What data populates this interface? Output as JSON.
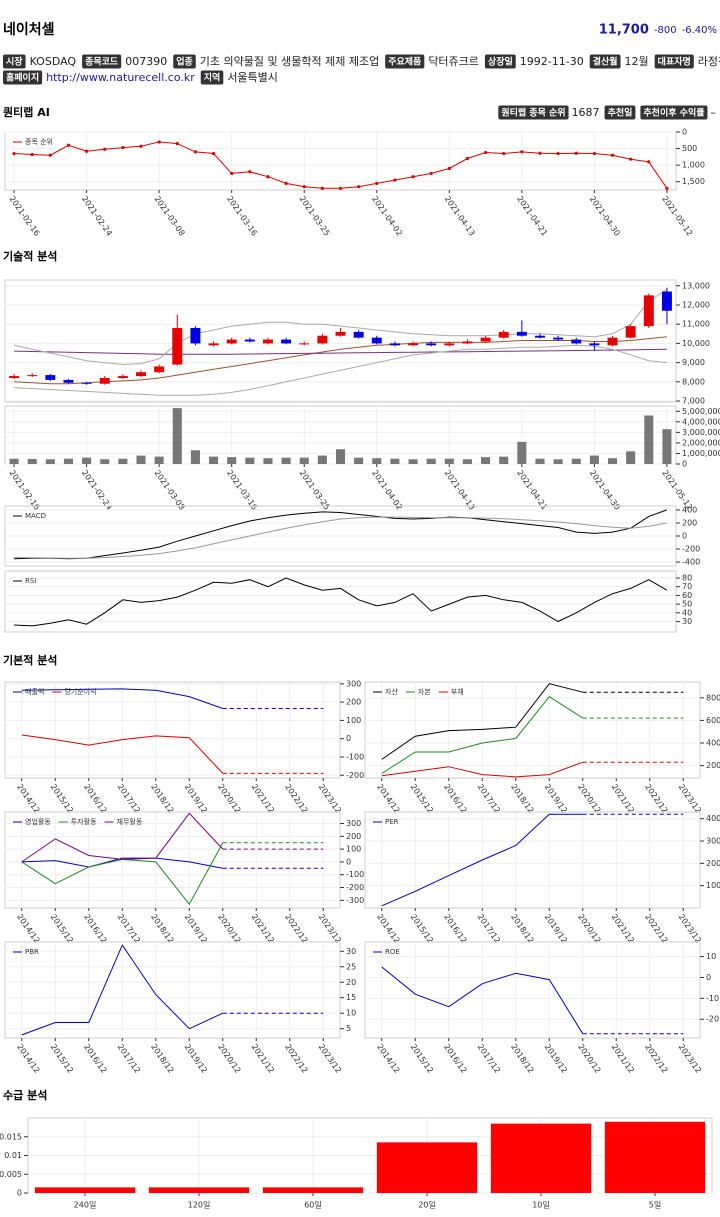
{
  "header": {
    "name": "네이처셀",
    "price": "11,700",
    "change": "-800",
    "change_pct": "-6.40%"
  },
  "info_rows": [
    [
      {
        "label": "시장",
        "value": "KOSDAQ"
      },
      {
        "label": "종목코드",
        "value": "007390"
      },
      {
        "label": "업종",
        "value": "기초 의약물질 및 생물학적 제제 제조업"
      },
      {
        "label": "주요제품",
        "value": "닥터쥬크르"
      },
      {
        "label": "상장일",
        "value": "1992-11-30"
      },
      {
        "label": "결산월",
        "value": "12월"
      },
      {
        "label": "대표자명",
        "value": "라정찬"
      }
    ],
    [
      {
        "label": "홈페이지",
        "value": "http://www.naturecell.co.kr"
      },
      {
        "label": "지역",
        "value": "서울특별시"
      }
    ]
  ],
  "sections": [
    "퀀티랩 AI",
    "기술적 분석",
    "기본적 분석",
    "수급 분석"
  ],
  "quant": {
    "rank_label": "퀀티랩 종목 순위",
    "rank": 1687,
    "date_label": "추천일",
    "return_label": "추천이후 수익률",
    "return": "–"
  },
  "chart_data": [
    {
      "type": "line",
      "markers": true,
      "grid": true,
      "categories": [
        "2021-02-16",
        null,
        null,
        null,
        "2021-02-24",
        null,
        null,
        null,
        "2021-03-08",
        null,
        null,
        null,
        "2021-03-16",
        null,
        null,
        null,
        "2021-03-25",
        null,
        null,
        null,
        "2021-04-02",
        null,
        null,
        null,
        "2021-04-13",
        null,
        null,
        null,
        "2021-04-21",
        null,
        null,
        null,
        "2021-04-30",
        null,
        null,
        null,
        "2021-05-12"
      ],
      "series": [
        {
          "name": "종목 순위",
          "color": "#dd0000",
          "values": [
            650,
            680,
            700,
            400,
            580,
            520,
            470,
            430,
            300,
            350,
            600,
            650,
            1250,
            1200,
            1350,
            1550,
            1650,
            1700,
            1700,
            1650,
            1550,
            1450,
            1350,
            1250,
            1100,
            800,
            620,
            650,
            600,
            640,
            650,
            640,
            650,
            700,
            820,
            900,
            1700
          ]
        }
      ],
      "ylim": [
        1750,
        0
      ],
      "yticks": [
        0,
        500,
        {
          "value": 1000,
          "label": "1,000"
        },
        {
          "value": 1500,
          "label": "1,500"
        }
      ]
    },
    {
      "type": "candlestick",
      "grid": true,
      "up_color": "#e60000",
      "down_color": "#0000e6",
      "open": [
        8200,
        8300,
        8350,
        8100,
        7950,
        7900,
        8200,
        8300,
        8500,
        8900,
        10800,
        9900,
        10000,
        10200,
        10000,
        10200,
        10000,
        10000,
        10400,
        10600,
        10300,
        10000,
        9900,
        10000,
        9900,
        10000,
        10100,
        10300,
        10600,
        10400,
        10300,
        10200,
        10000,
        9900,
        10300,
        10900,
        12700
      ],
      "high": [
        8400,
        8450,
        8400,
        8150,
        8000,
        8300,
        8400,
        8600,
        8900,
        11500,
        10900,
        10100,
        10300,
        10300,
        10300,
        10300,
        10100,
        10500,
        10800,
        10700,
        10400,
        10100,
        10100,
        10100,
        10100,
        10200,
        10400,
        10700,
        11200,
        10500,
        10400,
        10300,
        10100,
        10400,
        11000,
        12600,
        12900
      ],
      "low": [
        8150,
        8250,
        8050,
        7900,
        7850,
        7850,
        8150,
        8250,
        8450,
        8850,
        9900,
        9850,
        9950,
        10050,
        9950,
        9950,
        9900,
        9950,
        10350,
        10250,
        9950,
        9850,
        9850,
        9850,
        9850,
        9950,
        10050,
        10250,
        10350,
        10250,
        10150,
        9950,
        9600,
        9850,
        10250,
        10800,
        11000
      ],
      "close": [
        8300,
        8350,
        8100,
        7950,
        7900,
        8200,
        8300,
        8500,
        8800,
        10800,
        10000,
        10000,
        10200,
        10100,
        10200,
        10000,
        10000,
        10400,
        10600,
        10300,
        10000,
        9900,
        10000,
        9900,
        10000,
        10100,
        10300,
        10600,
        10400,
        10300,
        10200,
        10000,
        9900,
        10300,
        10900,
        12500,
        11700
      ],
      "lines": [
        {
          "color": "#a0522d",
          "values": [
            8000,
            7950,
            7900,
            7900,
            7950,
            8000,
            8050,
            8100,
            8200,
            8350,
            8500,
            8650,
            8800,
            8950,
            9100,
            9250,
            9400,
            9550,
            9700,
            9800,
            9900,
            9950,
            10000,
            10050,
            10050,
            10050,
            10050,
            10100,
            10150,
            10150,
            10150,
            10150,
            10100,
            10100,
            10150,
            10250,
            10350
          ]
        },
        {
          "color": "#7b2d8b",
          "values": [
            9600,
            9580,
            9560,
            9540,
            9520,
            9500,
            9480,
            9460,
            9440,
            9440,
            9440,
            9440,
            9440,
            9450,
            9460,
            9470,
            9480,
            9490,
            9500,
            9510,
            9520,
            9530,
            9540,
            9550,
            9560,
            9570,
            9580,
            9590,
            9600,
            9610,
            9620,
            9630,
            9640,
            9650,
            9660,
            9680,
            9700
          ]
        },
        {
          "color": "#aaaaaa",
          "values": [
            9900,
            9700,
            9500,
            9300,
            9100,
            9000,
            8900,
            8950,
            9200,
            10000,
            10500,
            10700,
            10900,
            11000,
            11100,
            11100,
            11000,
            11000,
            10900,
            10800,
            10700,
            10600,
            10500,
            10450,
            10400,
            10400,
            10400,
            10450,
            10500,
            10500,
            10450,
            10400,
            10350,
            10500,
            11000,
            12200,
            12800
          ]
        },
        {
          "color": "#aaaaaa",
          "values": [
            7700,
            7650,
            7600,
            7550,
            7500,
            7450,
            7400,
            7350,
            7300,
            7300,
            7300,
            7350,
            7450,
            7600,
            7800,
            8000,
            8200,
            8400,
            8600,
            8800,
            9000,
            9200,
            9400,
            9500,
            9600,
            9700,
            9700,
            9750,
            9800,
            9800,
            9850,
            9900,
            9850,
            9700,
            9400,
            9100,
            9000
          ]
        }
      ],
      "ylim": [
        6950,
        13300
      ],
      "yticks": [
        {
          "value": 7000,
          "label": "7,000"
        },
        {
          "value": 8000,
          "label": "8,000"
        },
        {
          "value": 9000,
          "label": "9,000"
        },
        {
          "value": 10000,
          "label": "10,000"
        },
        {
          "value": 11000,
          "label": "11,000"
        },
        {
          "value": 12000,
          "label": "12,000"
        },
        {
          "value": 13000,
          "label": "13,000"
        }
      ]
    },
    {
      "type": "bar",
      "grid": true,
      "color": "#777777",
      "categories": [
        "2021-02-16",
        null,
        null,
        null,
        "2021-02-24",
        null,
        null,
        null,
        "2021-03-08",
        null,
        null,
        null,
        "2021-03-16",
        null,
        null,
        null,
        "2021-03-25",
        null,
        null,
        null,
        "2021-04-02",
        null,
        null,
        null,
        "2021-04-13",
        null,
        null,
        null,
        "2021-04-21",
        null,
        null,
        null,
        "2021-04-30",
        null,
        null,
        null,
        "2021-05-12"
      ],
      "values": [
        500000,
        480000,
        450000,
        500000,
        600000,
        450000,
        500000,
        800000,
        700000,
        5300000,
        1300000,
        700000,
        650000,
        600000,
        550000,
        600000,
        600000,
        800000,
        1400000,
        600000,
        550000,
        500000,
        450000,
        500000,
        500000,
        450000,
        650000,
        700000,
        2100000,
        500000,
        450000,
        500000,
        800000,
        550000,
        1200000,
        4600000,
        3300000
      ],
      "ylim": [
        0,
        5500000
      ],
      "yticks": [
        0,
        {
          "value": 1000000,
          "label": "1,000,000"
        },
        {
          "value": 2000000,
          "label": "2,000,000"
        },
        {
          "value": 3000000,
          "label": "3,000,000"
        },
        {
          "value": 4000000,
          "label": "4,000,000"
        },
        {
          "value": 5000000,
          "label": "5,000,000"
        }
      ]
    },
    {
      "type": "line",
      "grid": true,
      "series": [
        {
          "name": "MACD",
          "color": "#000000",
          "values": [
            -350,
            -340,
            -340,
            -350,
            -340,
            -300,
            -260,
            -220,
            -170,
            -80,
            0,
            80,
            160,
            230,
            280,
            320,
            350,
            370,
            360,
            330,
            300,
            270,
            260,
            270,
            290,
            280,
            250,
            220,
            190,
            160,
            130,
            60,
            40,
            60,
            120,
            300,
            400
          ]
        },
        {
          "color": "#999999",
          "values": [
            -330,
            -335,
            -338,
            -340,
            -340,
            -330,
            -315,
            -295,
            -270,
            -230,
            -180,
            -120,
            -60,
            0,
            60,
            120,
            170,
            220,
            260,
            280,
            290,
            290,
            285,
            280,
            280,
            280,
            275,
            265,
            250,
            235,
            215,
            190,
            160,
            135,
            120,
            150,
            200
          ]
        }
      ],
      "ylim": [
        -460,
        460
      ],
      "yticks": [
        -400,
        -200,
        0,
        200,
        400
      ]
    },
    {
      "type": "line",
      "grid": true,
      "series": [
        {
          "name": "RSI",
          "color": "#000000",
          "values": [
            26,
            25,
            28,
            32,
            27,
            40,
            55,
            52,
            54,
            58,
            66,
            75,
            74,
            78,
            70,
            80,
            72,
            66,
            68,
            55,
            48,
            52,
            62,
            42,
            50,
            58,
            60,
            55,
            52,
            42,
            30,
            40,
            52,
            62,
            68,
            78,
            66
          ]
        }
      ],
      "ylim": [
        18,
        88
      ],
      "yticks": [
        30,
        40,
        50,
        60,
        70,
        80
      ]
    },
    {
      "type": "line",
      "grid": true,
      "dashed_from": "2020/12",
      "categories": [
        "2014/12",
        "2015/12",
        "2016/12",
        "2017/12",
        "2018/12",
        "2019/12",
        "2020/12",
        "2021/12",
        "2022/12",
        "2023/12"
      ],
      "series": [
        {
          "name": "매출액",
          "color": "#0000cc",
          "values": [
            265,
            268,
            270,
            272,
            265,
            230,
            165,
            165,
            165,
            165
          ]
        },
        {
          "name": "당기순이익",
          "color": "#dd0000",
          "values": [
            20,
            -5,
            -35,
            -5,
            15,
            5,
            -190,
            -190,
            -190,
            -190
          ]
        }
      ],
      "ylim": [
        -215,
        310
      ],
      "yticks": [
        -200,
        -100,
        0,
        100,
        200,
        300
      ]
    },
    {
      "type": "line",
      "grid": true,
      "dashed_from": "2020/12",
      "categories": [
        "2014/12",
        "2015/12",
        "2016/12",
        "2017/12",
        "2018/12",
        "2019/12",
        "2020/12",
        "2021/12",
        "2022/12",
        "2023/12"
      ],
      "series": [
        {
          "name": "자산",
          "color": "#000000",
          "values": [
            255,
            460,
            510,
            520,
            540,
            925,
            850,
            850,
            850,
            850
          ]
        },
        {
          "name": "자본",
          "color": "#228b22",
          "values": [
            130,
            320,
            320,
            400,
            440,
            810,
            620,
            620,
            620,
            620
          ]
        },
        {
          "name": "부채",
          "color": "#dd0000",
          "values": [
            110,
            150,
            190,
            120,
            100,
            120,
            230,
            230,
            230,
            230
          ]
        }
      ],
      "ylim": [
        90,
        940
      ],
      "yticks": [
        200,
        400,
        600,
        800
      ]
    },
    {
      "type": "line",
      "grid": true,
      "dashed_from": "2020/12",
      "categories": [
        "2014/12",
        "2015/12",
        "2016/12",
        "2017/12",
        "2018/12",
        "2019/12",
        "2020/12",
        "2021/12",
        "2022/12",
        "2023/12"
      ],
      "series": [
        {
          "name": "영업활동",
          "color": "#0000cc",
          "values": [
            0,
            10,
            -40,
            30,
            30,
            0,
            -50,
            -50,
            -50,
            -50
          ]
        },
        {
          "name": "투자활동",
          "color": "#228b22",
          "values": [
            0,
            -170,
            -40,
            20,
            0,
            -330,
            150,
            150,
            150,
            150
          ]
        },
        {
          "name": "재무활동",
          "color": "#800080",
          "values": [
            0,
            180,
            50,
            20,
            30,
            380,
            100,
            100,
            100,
            100
          ]
        }
      ],
      "ylim": [
        -360,
        390
      ],
      "yticks": [
        -300,
        -200,
        -100,
        0,
        100,
        200,
        300
      ]
    },
    {
      "type": "line",
      "grid": true,
      "dashed_from": "2020/12",
      "categories": [
        "2014/12",
        "2015/12",
        "2016/12",
        "2017/12",
        "2018/12",
        "2019/12",
        "2020/12",
        "2021/12",
        "2022/12",
        "2023/12"
      ],
      "series": [
        {
          "name": "PER",
          "color": "#0000cc",
          "values": [
            10,
            75,
            145,
            215,
            280,
            420,
            420,
            420,
            420,
            420
          ]
        }
      ],
      "ylim": [
        0,
        430
      ],
      "yticks": [
        100,
        200,
        300,
        400
      ]
    },
    {
      "type": "line",
      "grid": true,
      "dashed_from": "2020/12",
      "categories": [
        "2014/12",
        "2015/12",
        "2016/12",
        "2017/12",
        "2018/12",
        "2019/12",
        "2020/12",
        "2021/12",
        "2022/12",
        "2023/12"
      ],
      "series": [
        {
          "name": "PBR",
          "color": "#0000cc",
          "values": [
            3,
            7,
            7,
            32,
            16,
            5,
            10,
            10,
            10,
            10
          ]
        }
      ],
      "ylim": [
        2,
        33
      ],
      "yticks": [
        5,
        10,
        15,
        20,
        25,
        30
      ]
    },
    {
      "type": "line",
      "grid": true,
      "dashed_from": "2020/12",
      "categories": [
        "2014/12",
        "2015/12",
        "2016/12",
        "2017/12",
        "2018/12",
        "2019/12",
        "2020/12",
        "2021/12",
        "2022/12",
        "2023/12"
      ],
      "series": [
        {
          "name": "ROE",
          "color": "#0000cc",
          "values": [
            5,
            -8,
            -14,
            -3,
            2,
            -1,
            -27,
            -27,
            -27,
            -27
          ]
        }
      ],
      "ylim": [
        -29,
        17
      ],
      "yticks": [
        -20,
        -10,
        0,
        10
      ]
    },
    {
      "type": "bar",
      "grid": true,
      "color": "#ff0000",
      "categories": [
        "240일",
        "120일",
        "60일",
        "20일",
        "10일",
        "5일"
      ],
      "values": [
        0.0015,
        0.0015,
        0.0015,
        0.0135,
        0.0185,
        0.019
      ],
      "ylim": [
        0,
        0.02
      ],
      "yticks": [
        0,
        0.005,
        0.01,
        0.015
      ]
    }
  ]
}
